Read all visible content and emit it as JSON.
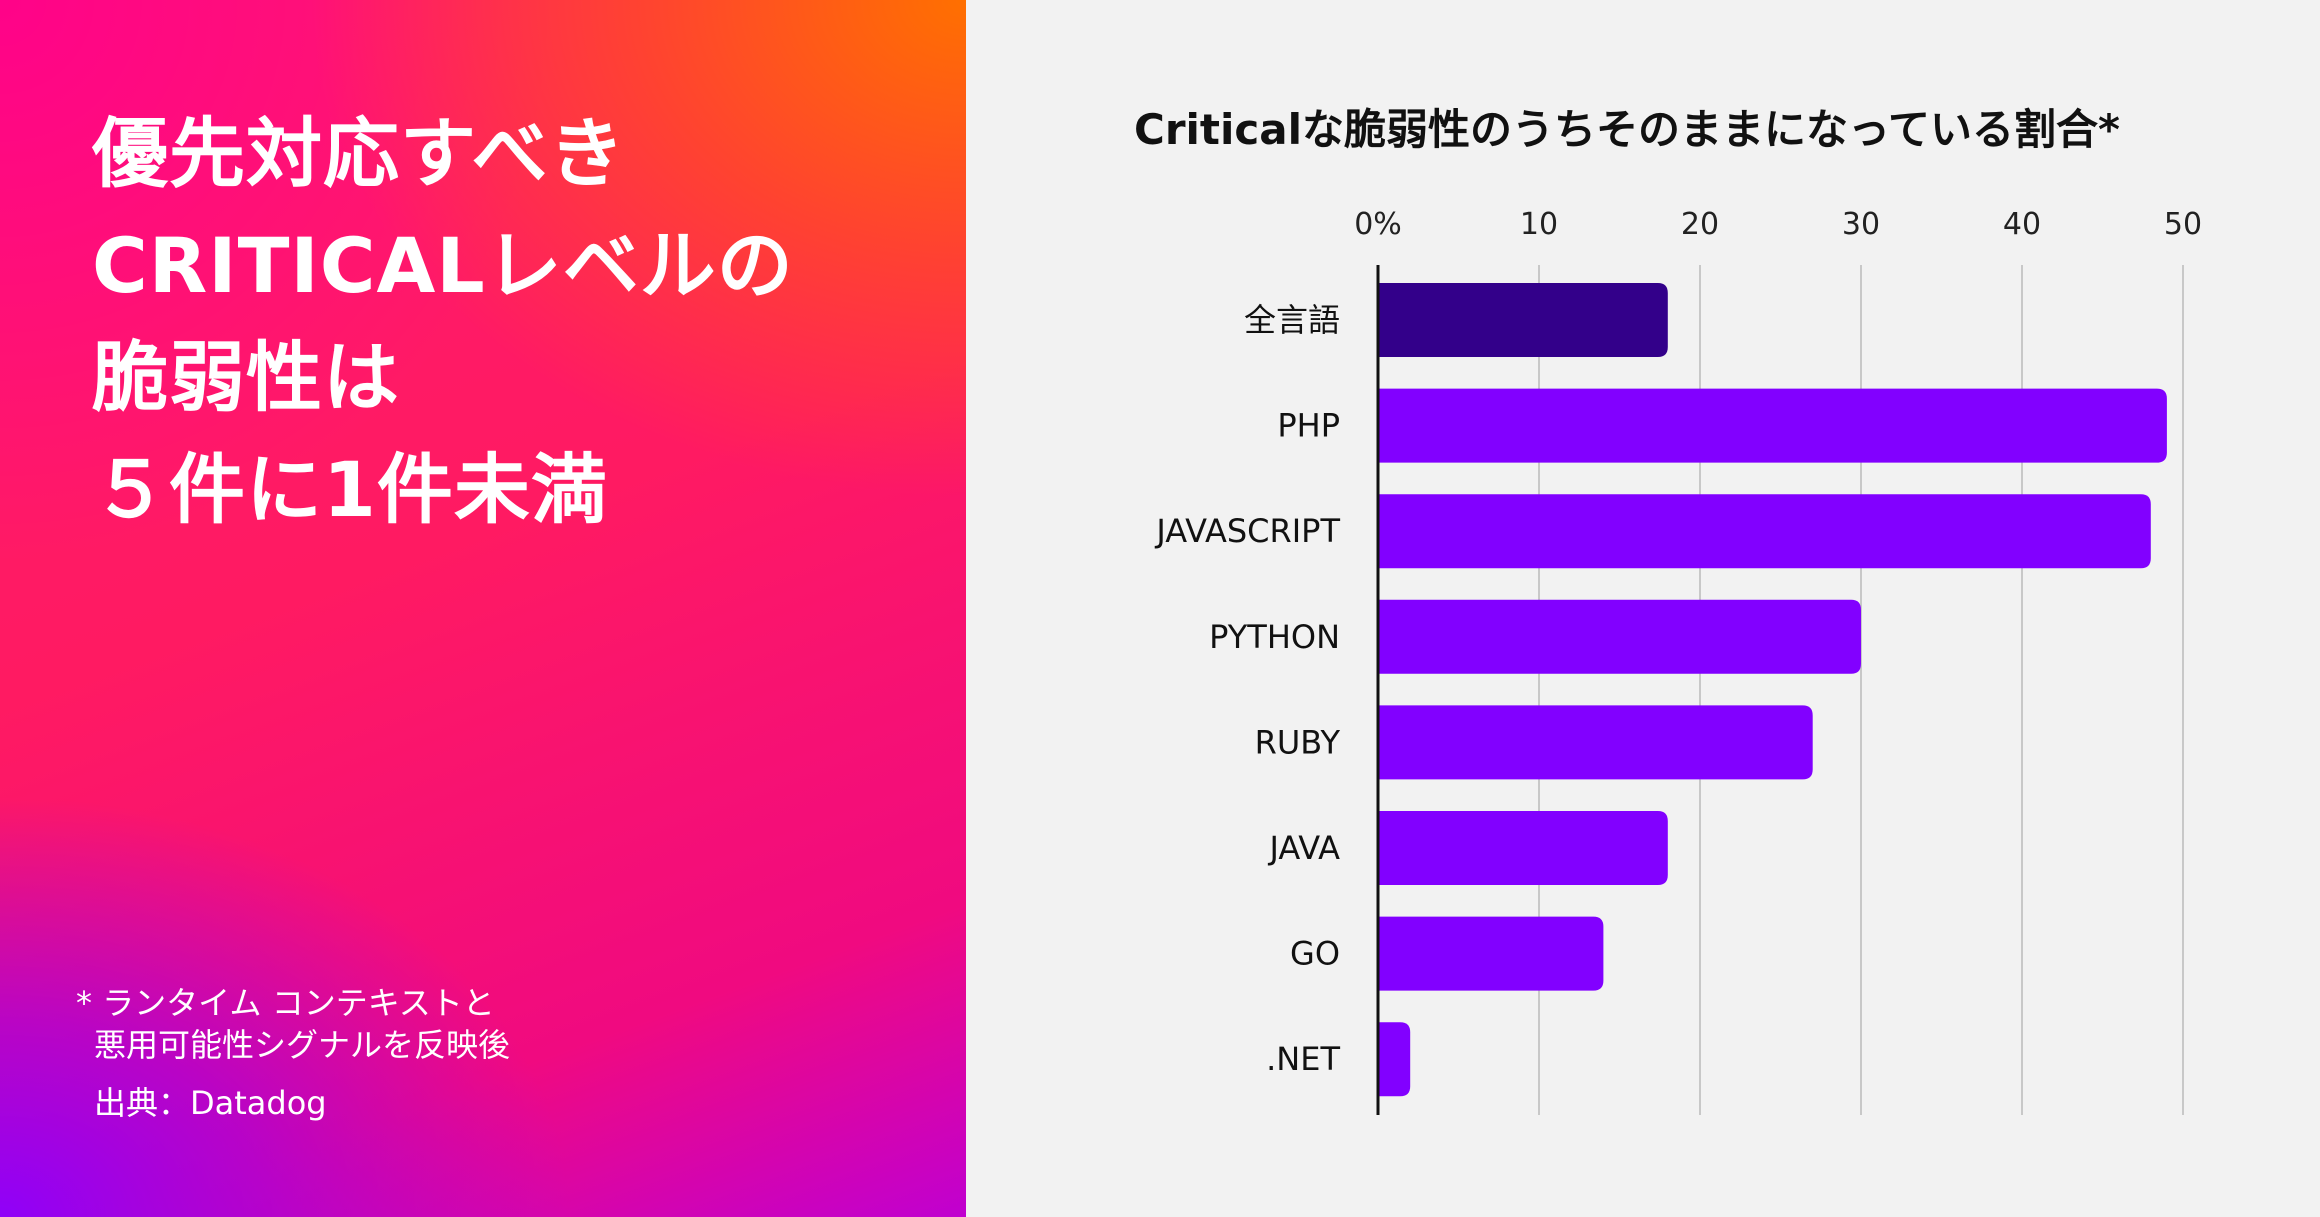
{
  "headline": {
    "line1": "優先対応すべき",
    "line2": "CRITICALレベルの",
    "line3": "脆弱性は",
    "line4": "５件に1件未満"
  },
  "footnote": {
    "line1": "* ランタイム コンテキストと",
    "line2": "悪用可能性シグナルを反映後"
  },
  "source": "出典：Datadog",
  "colors": {
    "highlight_bar": "#33008a",
    "bar": "#8200ff",
    "background": "#f2f2f2"
  },
  "chart_data": {
    "type": "bar",
    "orientation": "horizontal",
    "title": "Criticalな脆弱性のうちそのままになっている割合*",
    "categories": [
      "全言語",
      "PHP",
      "JAVASCRIPT",
      "PYTHON",
      "RUBY",
      "JAVA",
      "GO",
      ".NET"
    ],
    "values": [
      18,
      49,
      48,
      30,
      27,
      18,
      14,
      2
    ],
    "highlight_category": "全言語",
    "xlim": [
      0,
      50
    ],
    "xticks": [
      0,
      10,
      20,
      30,
      40,
      50
    ],
    "xtick_labels": [
      "0%",
      "10",
      "20",
      "30",
      "40",
      "50"
    ],
    "xaxis_position": "top",
    "grid": true
  }
}
